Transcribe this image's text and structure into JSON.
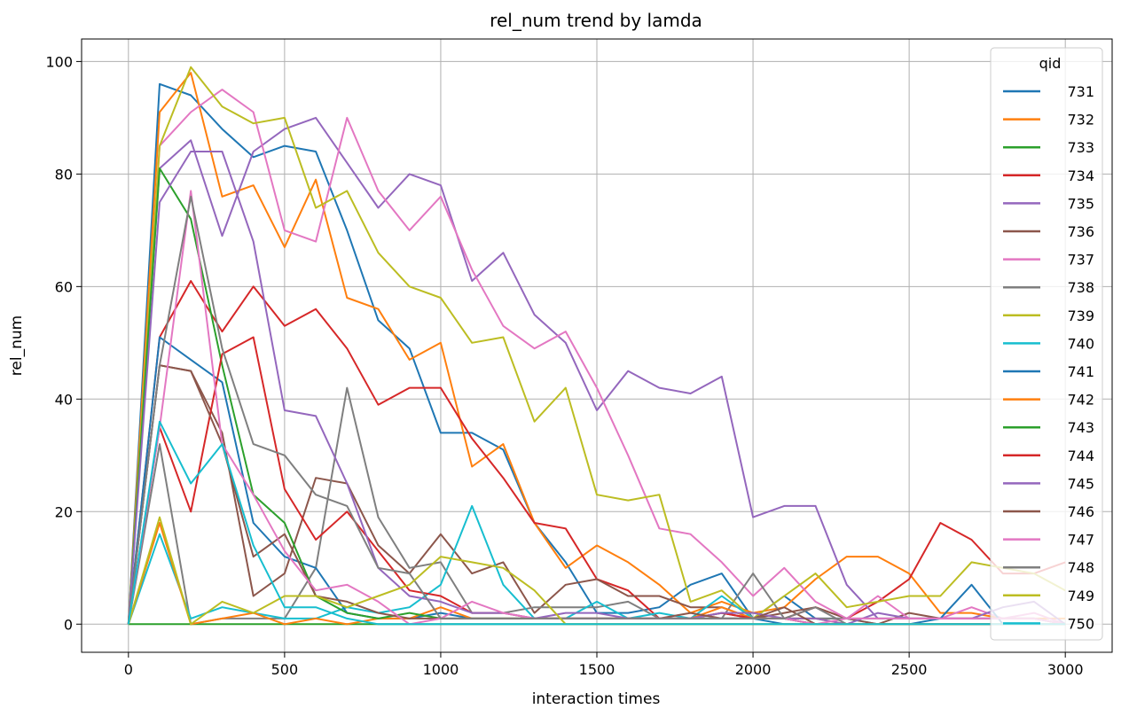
{
  "chart_data": {
    "type": "line",
    "title": "rel_num trend by lamda",
    "xlabel": "interaction times",
    "ylabel": "rel_num",
    "xlim": [
      -150,
      3150
    ],
    "ylim": [
      -5,
      104
    ],
    "xticks": [
      0,
      500,
      1000,
      1500,
      2000,
      2500,
      3000
    ],
    "yticks": [
      0,
      20,
      40,
      60,
      80,
      100
    ],
    "grid": true,
    "legend": {
      "title": "qid",
      "placement": "right"
    },
    "x": [
      0,
      100,
      200,
      300,
      400,
      500,
      600,
      700,
      800,
      900,
      1000,
      1100,
      1200,
      1300,
      1400,
      1500,
      1600,
      1700,
      1800,
      1900,
      2000,
      2100,
      2200,
      2300,
      2400,
      2500,
      2600,
      2700,
      2800,
      2900,
      3000
    ],
    "series": [
      {
        "name": "731",
        "color": "#1f77b4",
        "values": [
          0,
          96,
          94,
          88,
          83,
          85,
          84,
          70,
          54,
          49,
          34,
          34,
          31,
          18,
          11,
          2,
          2,
          3,
          7,
          9,
          1,
          5,
          1,
          1,
          0,
          0,
          0,
          0,
          0,
          0,
          0
        ]
      },
      {
        "name": "732",
        "color": "#ff7f0e",
        "values": [
          0,
          91,
          98,
          76,
          78,
          67,
          79,
          58,
          56,
          47,
          50,
          28,
          32,
          18,
          10,
          14,
          11,
          7,
          2,
          4,
          2,
          3,
          8,
          12,
          12,
          9,
          2,
          2,
          1,
          1,
          1
        ]
      },
      {
        "name": "733",
        "color": "#2ca02c",
        "values": [
          0,
          0,
          0,
          0,
          0,
          0,
          0,
          0,
          0,
          0,
          0,
          0,
          0,
          0,
          0,
          0,
          0,
          0,
          0,
          0,
          0,
          0,
          0,
          0,
          0,
          0,
          0,
          0,
          0,
          0,
          0
        ]
      },
      {
        "name": "734",
        "color": "#d62728",
        "values": [
          0,
          51,
          61,
          52,
          60,
          53,
          56,
          49,
          39,
          42,
          42,
          33,
          26,
          18,
          17,
          8,
          6,
          1,
          1,
          2,
          1,
          1,
          3,
          1,
          4,
          8,
          18,
          15,
          9,
          9,
          11
        ]
      },
      {
        "name": "735",
        "color": "#9467bd",
        "values": [
          0,
          81,
          86,
          69,
          84,
          88,
          90,
          82,
          74,
          80,
          78,
          61,
          66,
          55,
          50,
          38,
          45,
          42,
          41,
          44,
          19,
          21,
          21,
          7,
          1,
          1,
          1,
          1,
          1,
          1,
          0
        ]
      },
      {
        "name": "736",
        "color": "#8c564b",
        "values": [
          0,
          46,
          45,
          34,
          5,
          9,
          26,
          25,
          14,
          9,
          16,
          9,
          11,
          2,
          7,
          8,
          5,
          5,
          3,
          3,
          1,
          2,
          3,
          1,
          0,
          2,
          1,
          1,
          1,
          1,
          0
        ]
      },
      {
        "name": "737",
        "color": "#e377c2",
        "values": [
          0,
          85,
          91,
          95,
          91,
          70,
          68,
          90,
          77,
          70,
          76,
          63,
          53,
          49,
          52,
          42,
          30,
          17,
          16,
          11,
          5,
          10,
          4,
          1,
          5,
          1,
          1,
          3,
          1,
          2,
          0
        ]
      },
      {
        "name": "738",
        "color": "#7f7f7f",
        "values": [
          0,
          32,
          0,
          1,
          1,
          1,
          10,
          42,
          19,
          10,
          11,
          2,
          2,
          3,
          3,
          3,
          4,
          1,
          1,
          1,
          9,
          1,
          1,
          1,
          1,
          1,
          1,
          1,
          1,
          1,
          0
        ]
      },
      {
        "name": "739",
        "color": "#bcbd22",
        "values": [
          0,
          85,
          99,
          92,
          89,
          90,
          74,
          77,
          66,
          60,
          58,
          50,
          51,
          36,
          42,
          23,
          22,
          23,
          4,
          6,
          1,
          5,
          9,
          3,
          4,
          5,
          5,
          11,
          10,
          9,
          6
        ]
      },
      {
        "name": "740",
        "color": "#17becf",
        "values": [
          0,
          16,
          1,
          3,
          2,
          1,
          1,
          3,
          2,
          3,
          7,
          21,
          7,
          1,
          1,
          4,
          1,
          2,
          1,
          5,
          1,
          1,
          0,
          0,
          0,
          0,
          0,
          0,
          0,
          0,
          0
        ]
      },
      {
        "name": "741",
        "color": "#1f77b4",
        "values": [
          0,
          51,
          47,
          43,
          18,
          12,
          10,
          2,
          1,
          1,
          2,
          1,
          1,
          1,
          1,
          1,
          1,
          1,
          1,
          1,
          1,
          0,
          0,
          0,
          0,
          0,
          1,
          7,
          0,
          0,
          0
        ]
      },
      {
        "name": "742",
        "color": "#ff7f0e",
        "values": [
          0,
          18,
          0,
          1,
          2,
          0,
          1,
          0,
          1,
          1,
          3,
          1,
          1,
          1,
          1,
          1,
          1,
          1,
          1,
          3,
          1,
          1,
          1,
          0,
          0,
          0,
          0,
          0,
          0,
          0,
          0
        ]
      },
      {
        "name": "743",
        "color": "#2ca02c",
        "values": [
          0,
          81,
          72,
          46,
          23,
          18,
          5,
          2,
          1,
          2,
          1,
          1,
          1,
          1,
          1,
          1,
          1,
          1,
          1,
          1,
          1,
          1,
          0,
          0,
          0,
          0,
          0,
          0,
          0,
          0,
          0
        ]
      },
      {
        "name": "744",
        "color": "#d62728",
        "values": [
          0,
          35,
          20,
          48,
          51,
          24,
          15,
          20,
          13,
          6,
          5,
          2,
          2,
          1,
          1,
          1,
          1,
          1,
          1,
          2,
          1,
          1,
          0,
          0,
          0,
          0,
          0,
          0,
          0,
          0,
          0
        ]
      },
      {
        "name": "745",
        "color": "#9467bd",
        "values": [
          0,
          75,
          84,
          84,
          68,
          38,
          37,
          25,
          10,
          5,
          4,
          2,
          2,
          1,
          2,
          2,
          1,
          1,
          1,
          2,
          2,
          1,
          1,
          0,
          2,
          1,
          1,
          1,
          3,
          4,
          0
        ]
      },
      {
        "name": "746",
        "color": "#8c564b",
        "values": [
          0,
          46,
          45,
          32,
          12,
          16,
          5,
          4,
          2,
          1,
          1,
          1,
          1,
          1,
          1,
          1,
          1,
          1,
          2,
          1,
          1,
          3,
          0,
          0,
          0,
          0,
          0,
          0,
          0,
          0,
          0
        ]
      },
      {
        "name": "747",
        "color": "#e377c2",
        "values": [
          0,
          35,
          77,
          32,
          23,
          13,
          6,
          7,
          4,
          0,
          1,
          4,
          2,
          1,
          1,
          1,
          1,
          1,
          1,
          1,
          1,
          1,
          0,
          1,
          1,
          1,
          1,
          1,
          1,
          1,
          0
        ]
      },
      {
        "name": "748",
        "color": "#7f7f7f",
        "values": [
          0,
          46,
          76,
          49,
          32,
          30,
          23,
          21,
          10,
          9,
          1,
          1,
          1,
          1,
          1,
          1,
          1,
          1,
          1,
          1,
          1,
          1,
          3,
          0,
          0,
          0,
          0,
          0,
          0,
          0,
          0
        ]
      },
      {
        "name": "749",
        "color": "#bcbd22",
        "values": [
          0,
          19,
          0,
          4,
          2,
          5,
          5,
          3,
          5,
          7,
          12,
          11,
          10,
          6,
          0,
          0,
          0,
          0,
          0,
          0,
          0,
          0,
          0,
          0,
          0,
          0,
          0,
          0,
          0,
          0,
          0
        ]
      },
      {
        "name": "750",
        "color": "#17becf",
        "values": [
          0,
          36,
          25,
          32,
          14,
          3,
          3,
          1,
          0,
          0,
          0,
          0,
          0,
          0,
          0,
          0,
          0,
          0,
          0,
          0,
          0,
          0,
          0,
          0,
          0,
          0,
          0,
          0,
          0,
          0,
          0
        ]
      }
    ]
  }
}
